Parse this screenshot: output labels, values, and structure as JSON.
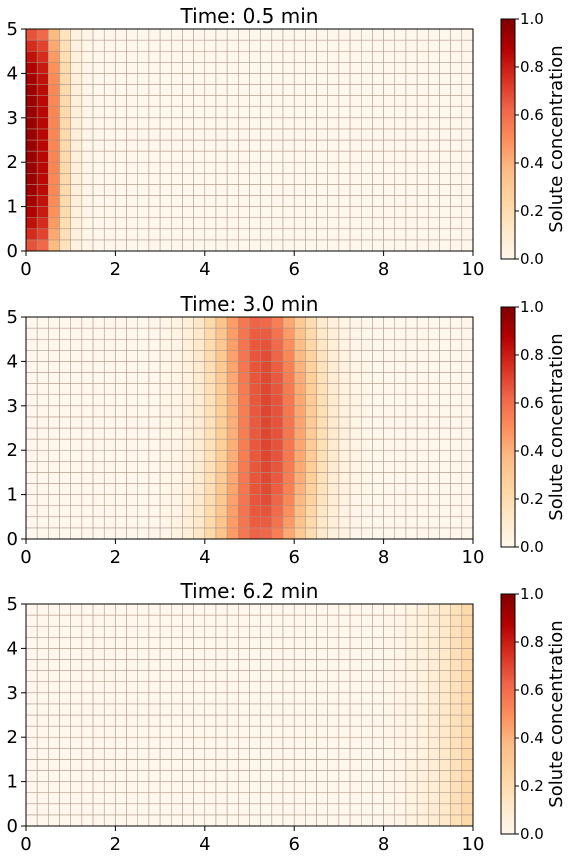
{
  "chart_data": [
    {
      "type": "heatmap",
      "title": "Time: 0.5 min",
      "xlim": [
        0,
        10
      ],
      "ylim": [
        0,
        5
      ],
      "xticks": [
        "0",
        "2",
        "4",
        "6",
        "8",
        "10"
      ],
      "yticks": [
        "0",
        "1",
        "2",
        "3",
        "4",
        "5"
      ],
      "colormap": "OrRd",
      "vmin": 0,
      "vmax": 1,
      "colorbar": {
        "label": "Solute concentration",
        "ticks": [
          "0.0",
          "0.2",
          "0.4",
          "0.6",
          "0.8",
          "1.0"
        ]
      },
      "grid_shape": [
        20,
        40
      ],
      "plume": {
        "center_x": 0.2,
        "spread_x": 0.55,
        "peak": 0.95,
        "edge_damping": 0.35,
        "y_curvature": 0.0
      }
    },
    {
      "type": "heatmap",
      "title": "Time: 3.0 min",
      "xlim": [
        0,
        10
      ],
      "ylim": [
        0,
        5
      ],
      "xticks": [
        "0",
        "2",
        "4",
        "6",
        "8",
        "10"
      ],
      "yticks": [
        "0",
        "1",
        "2",
        "3",
        "4",
        "5"
      ],
      "colormap": "OrRd",
      "vmin": 0,
      "vmax": 1,
      "colorbar": {
        "label": "Solute concentration",
        "ticks": [
          "0.0",
          "0.2",
          "0.4",
          "0.6",
          "0.8",
          "1.0"
        ]
      },
      "grid_shape": [
        20,
        40
      ],
      "plume": {
        "center_x": 5.2,
        "spread_x": 1.05,
        "peak": 0.7,
        "edge_damping": 0.12,
        "y_curvature": 0.2
      }
    },
    {
      "type": "heatmap",
      "title": "Time: 6.2 min",
      "xlim": [
        0,
        10
      ],
      "ylim": [
        0,
        5
      ],
      "xticks": [
        "0",
        "2",
        "4",
        "6",
        "8",
        "10"
      ],
      "yticks": [
        "0",
        "1",
        "2",
        "3",
        "4",
        "5"
      ],
      "colormap": "OrRd",
      "vmin": 0,
      "vmax": 1,
      "colorbar": {
        "label": "Solute concentration",
        "ticks": [
          "0.0",
          "0.2",
          "0.4",
          "0.6",
          "0.8",
          "1.0"
        ]
      },
      "grid_shape": [
        20,
        40
      ],
      "plume": {
        "center_x": 10.6,
        "spread_x": 1.3,
        "peak": 0.32,
        "edge_damping": 0.1,
        "y_curvature": 0.1
      }
    }
  ]
}
